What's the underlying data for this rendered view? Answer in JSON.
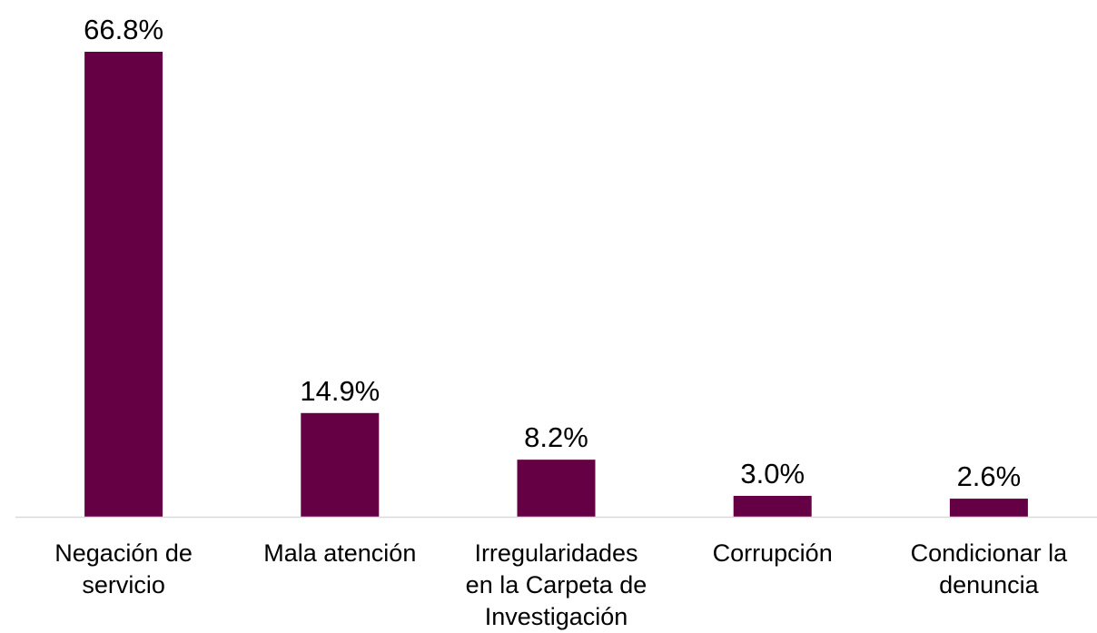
{
  "chart_data": {
    "type": "bar",
    "title": "",
    "xlabel": "",
    "ylabel": "",
    "ylim": [
      0,
      66.8
    ],
    "grid": false,
    "legend": "none",
    "bar_color": "#660044",
    "axis_color": "#d9d9d9",
    "categories": [
      [
        "Negación de",
        "servicio"
      ],
      [
        "Mala atención"
      ],
      [
        "Irregularidades",
        "en la Carpeta de",
        "Investigación"
      ],
      [
        "Corrupción"
      ],
      [
        "Condicionar la",
        "denuncia"
      ]
    ],
    "values": [
      66.8,
      14.9,
      8.2,
      3.0,
      2.6
    ],
    "value_labels": [
      "66.8%",
      "14.9%",
      "8.2%",
      "3.0%",
      "2.6%"
    ]
  }
}
